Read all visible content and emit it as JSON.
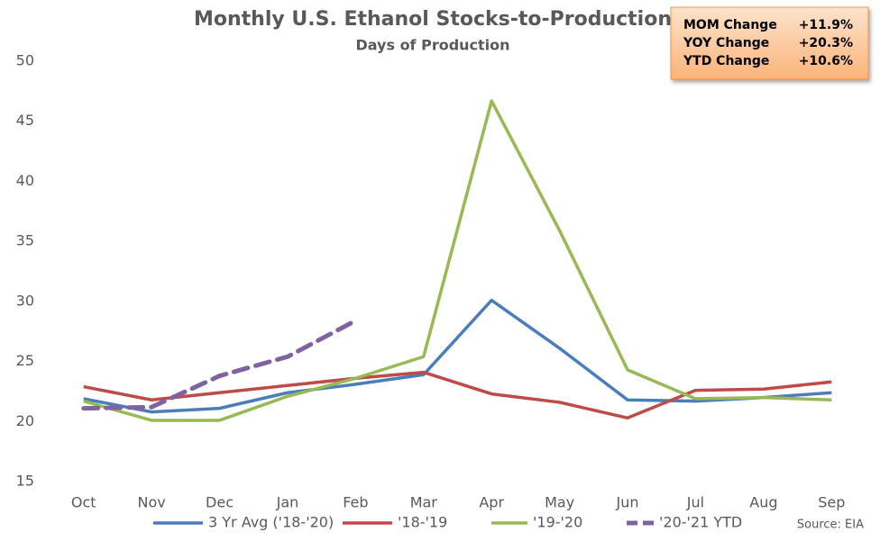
{
  "chart_data": {
    "type": "line",
    "title": "Monthly U.S. Ethanol Stocks-to-Production",
    "subtitle": "Days of Production",
    "categories": [
      "Oct",
      "Nov",
      "Dec",
      "Jan",
      "Feb",
      "Mar",
      "Apr",
      "May",
      "Jun",
      "Jul",
      "Aug",
      "Sep"
    ],
    "series": [
      {
        "name": "3 Yr Avg ('18-'20)",
        "color": "#4a7ebb",
        "dash": false,
        "values": [
          21.9,
          20.8,
          21.1,
          22.4,
          23.1,
          23.9,
          30.1,
          26.1,
          21.8,
          21.7,
          22.0,
          22.4
        ]
      },
      {
        "name": "'18-'19",
        "color": "#be4b48",
        "dash": false,
        "values": [
          22.9,
          21.8,
          22.4,
          23.0,
          23.6,
          24.1,
          22.3,
          21.6,
          20.3,
          22.6,
          22.7,
          23.3
        ]
      },
      {
        "name": "'19-'20",
        "color": "#98b954",
        "dash": false,
        "values": [
          21.7,
          20.1,
          20.1,
          22.1,
          23.6,
          25.4,
          46.7,
          35.9,
          24.3,
          21.9,
          22.0,
          21.8
        ]
      },
      {
        "name": "'20-'21 YTD",
        "color": "#7f63a1",
        "dash": true,
        "values": [
          21.1,
          21.2,
          23.8,
          25.4,
          28.4,
          null,
          null,
          null,
          null,
          null,
          null,
          null
        ]
      }
    ],
    "ylim": [
      15,
      50
    ],
    "yticks": [
      15,
      20,
      25,
      30,
      35,
      40,
      45,
      50
    ],
    "grid": false,
    "legend": "bottom",
    "source": "Source: EIA"
  },
  "table": {
    "rows": [
      [
        "MOM Change",
        "+11.9%"
      ],
      [
        "YOY Change",
        "+20.3%"
      ],
      [
        "YTD Change",
        "+10.6%"
      ]
    ]
  }
}
